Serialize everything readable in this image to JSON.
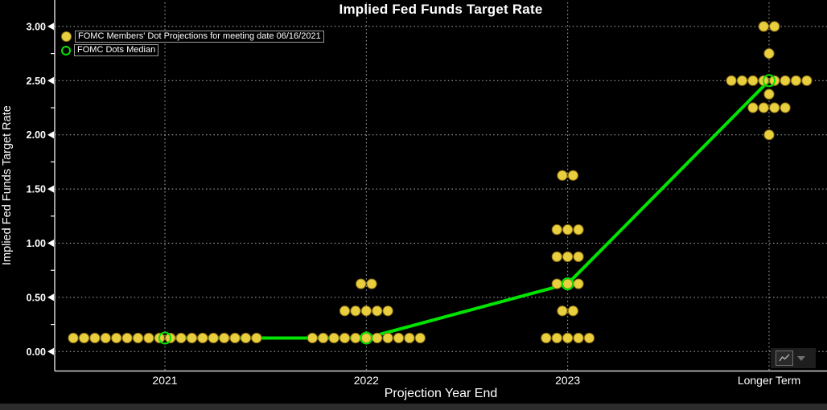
{
  "title": "Implied Fed Funds Target Rate",
  "legend": {
    "items": [
      {
        "label": "FOMC Members' Dot Projections for meeting date 06/16/2021",
        "marker": "filled-dot",
        "color": "#e9cf3e"
      },
      {
        "label": "FOMC Dots Median",
        "marker": "ring",
        "color": "#00e400"
      }
    ]
  },
  "y_axis": {
    "label": "Implied Fed Funds Target Rate",
    "tick_labels": [
      "3.00",
      "2.50",
      "2.00",
      "1.50",
      "1.00",
      "0.50",
      "0.00"
    ],
    "tick_values": [
      3.0,
      2.5,
      2.0,
      1.5,
      1.0,
      0.5,
      0.0
    ],
    "minor_tick_step": 0.25
  },
  "x_axis": {
    "label": "Projection Year End",
    "categories": [
      "2021",
      "2022",
      "2023",
      "Longer Term"
    ]
  },
  "colors": {
    "background": "#000000",
    "dot_fill": "#e9cf3e",
    "dot_edge": "#8a6d14",
    "median_green": "#00e400",
    "grid": "#e0e0e0",
    "axis": "#d0d0d0",
    "text": "#ffffff"
  },
  "chart_data": {
    "type": "scatter",
    "title": "Implied Fed Funds Target Rate",
    "xlabel": "Projection Year End",
    "ylabel": "Implied Fed Funds Target Rate",
    "categories": [
      "2021",
      "2022",
      "2023",
      "Longer Term"
    ],
    "ylim": [
      0,
      3.0
    ],
    "y_tick_step": 0.5,
    "grid": true,
    "legend_position": "top-left",
    "dot_groups": [
      {
        "category": "2021",
        "dots": [
          {
            "value": 0.125,
            "count": 18
          }
        ]
      },
      {
        "category": "2022",
        "dots": [
          {
            "value": 0.125,
            "count": 11
          },
          {
            "value": 0.375,
            "count": 5
          },
          {
            "value": 0.625,
            "count": 2
          }
        ]
      },
      {
        "category": "2023",
        "dots": [
          {
            "value": 0.125,
            "count": 5
          },
          {
            "value": 0.375,
            "count": 2
          },
          {
            "value": 0.625,
            "count": 3
          },
          {
            "value": 0.875,
            "count": 3
          },
          {
            "value": 1.125,
            "count": 3
          },
          {
            "value": 1.625,
            "count": 2
          }
        ]
      },
      {
        "category": "Longer Term",
        "dots": [
          {
            "value": 2.0,
            "count": 1
          },
          {
            "value": 2.25,
            "count": 4
          },
          {
            "value": 2.375,
            "count": 1
          },
          {
            "value": 2.5,
            "count": 8
          },
          {
            "value": 2.75,
            "count": 1
          },
          {
            "value": 3.0,
            "count": 2
          }
        ]
      }
    ],
    "series": [
      {
        "name": "FOMC Dots Median",
        "type": "line",
        "values": [
          0.125,
          0.125,
          0.625,
          2.5
        ]
      }
    ]
  },
  "widget_button": {
    "name": "chart-options"
  }
}
